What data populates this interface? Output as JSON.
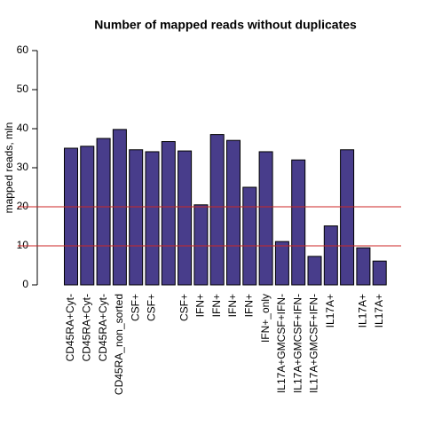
{
  "chart_data": {
    "type": "bar",
    "title": "Number of mapped reads without duplicates",
    "y_label": "mapped reads, mln",
    "categories": [
      "CD45RA+Cyt-",
      "CD45RA+Cyt-",
      "CD45RA+Cyt-",
      "CD45RA_non_sorted",
      "CSF+",
      "CSF+",
      null,
      "CSF+",
      "IFN+",
      "IFN+",
      "IFN+",
      "IFN+",
      "IFN+_only",
      "IL17A+GMCSF+IFN-",
      "IL17A+GMCSF+IFN-",
      "IL17A+GMCSF+IFN-",
      "IL17A+",
      null,
      "IL17A+",
      "IL17A+"
    ],
    "values": [
      35.0,
      35.5,
      37.5,
      39.8,
      34.6,
      34.1,
      36.7,
      34.3,
      20.5,
      38.5,
      37.0,
      25.0,
      34.1,
      11.1,
      32.0,
      7.3,
      15.1,
      34.6,
      9.5,
      6.1
    ],
    "color": "#483d8b",
    "ylim": [
      0,
      60
    ],
    "yticks": [
      0,
      10,
      20,
      30,
      40,
      50,
      60
    ],
    "reference_lines": [
      {
        "value": 10,
        "color": "#cd2626"
      },
      {
        "value": 20,
        "color": "#cd2626"
      }
    ]
  }
}
